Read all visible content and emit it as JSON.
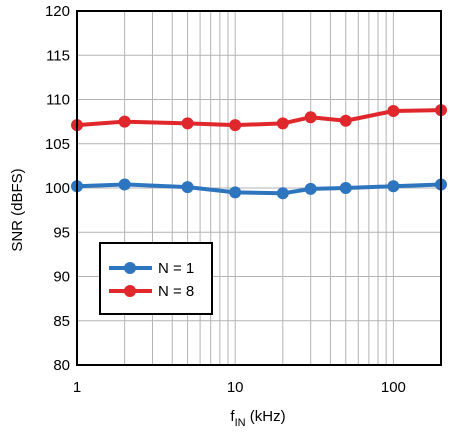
{
  "chart_data": {
    "type": "line",
    "xscale": "log",
    "xlim": [
      1,
      200
    ],
    "ylim": [
      80,
      120
    ],
    "xticks": [
      1,
      10,
      100
    ],
    "xtick_labels": [
      "1",
      "10",
      "100"
    ],
    "yticks": [
      80,
      85,
      90,
      95,
      100,
      105,
      110,
      115,
      120
    ],
    "ytick_labels": [
      "80",
      "85",
      "90",
      "95",
      "100",
      "105",
      "110",
      "115",
      "120"
    ],
    "xlabel_main": "f",
    "xlabel_sub": "IN",
    "xlabel_unit": " (kHz)",
    "ylabel": "SNR (dBFS)",
    "grid": true,
    "legend_position": "lower-left",
    "series": [
      {
        "name": "N = 1",
        "color": "#2e75c0",
        "x": [
          1,
          2,
          5,
          10,
          20,
          30,
          50,
          100,
          200
        ],
        "y": [
          100.2,
          100.4,
          100.1,
          99.5,
          99.4,
          99.9,
          100.0,
          100.2,
          100.4
        ]
      },
      {
        "name": "N = 8",
        "color": "#e0282c",
        "x": [
          1,
          2,
          5,
          10,
          20,
          30,
          50,
          100,
          200
        ],
        "y": [
          107.1,
          107.5,
          107.3,
          107.1,
          107.3,
          108.0,
          107.6,
          108.7,
          108.8
        ]
      }
    ]
  }
}
